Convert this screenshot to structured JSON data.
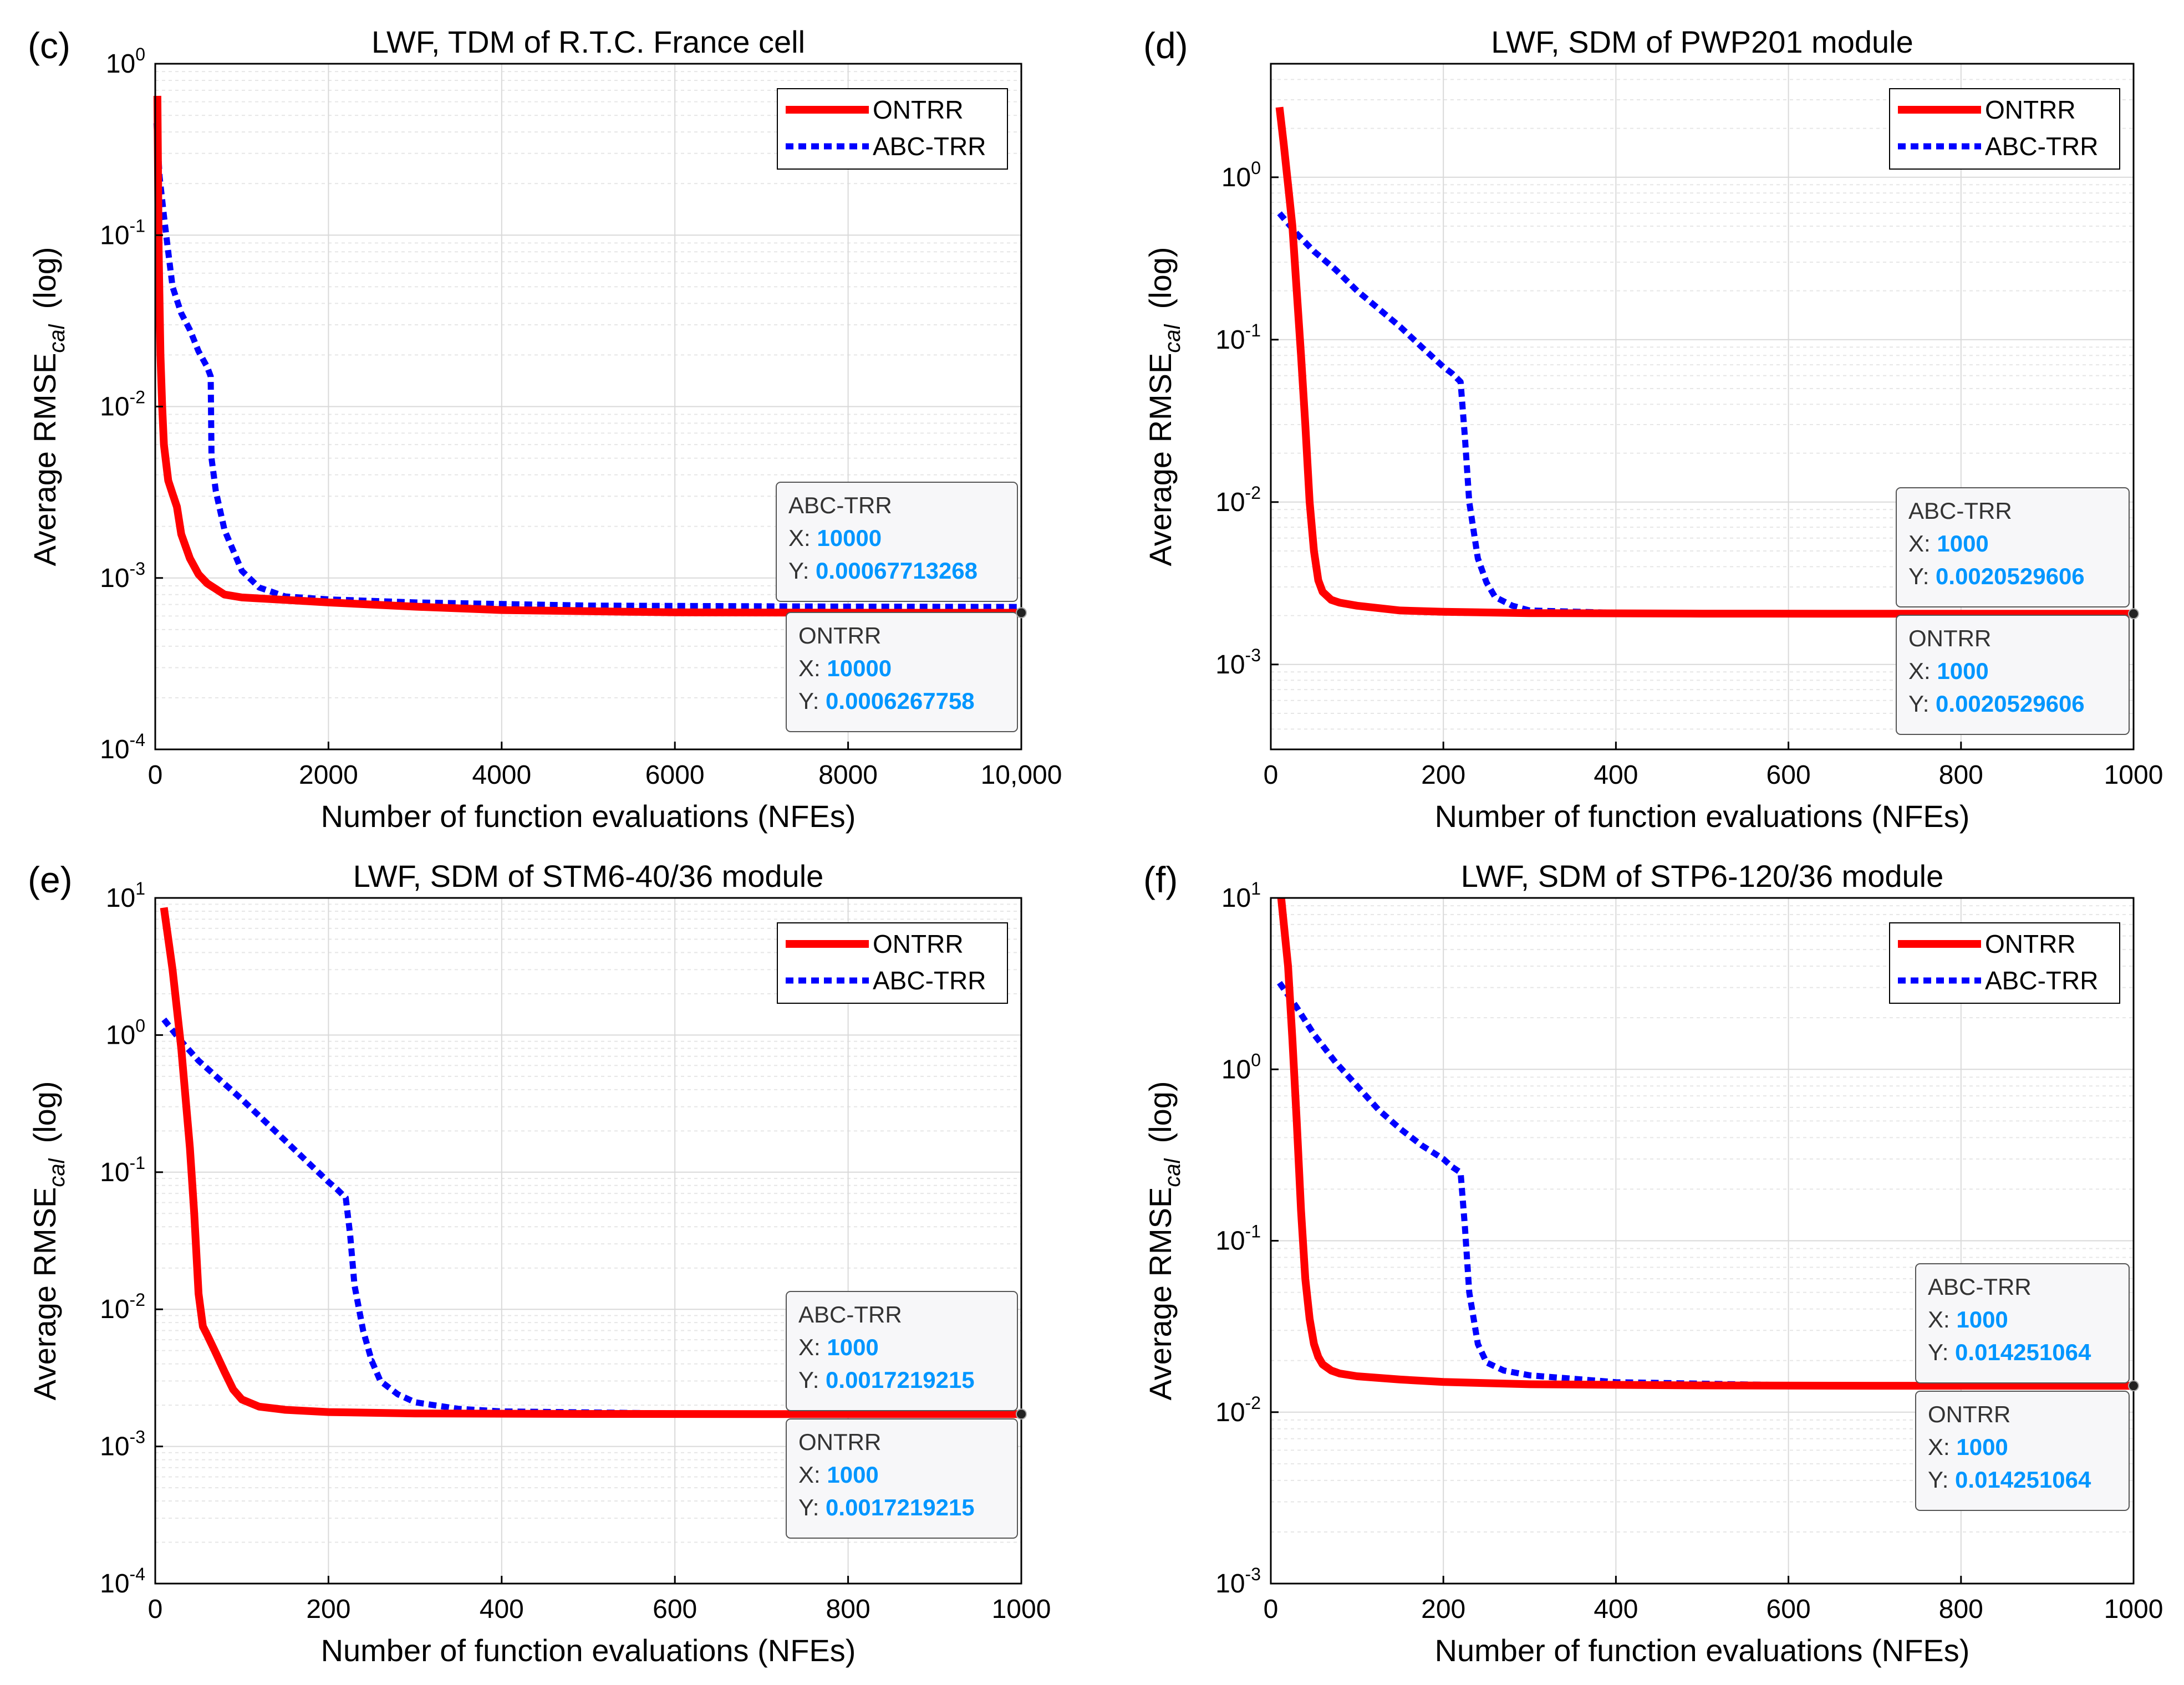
{
  "colors": {
    "ontrr": "#ff0000",
    "abctrr": "#0000ff",
    "datatip_value": "#0096ff",
    "grid_major": "#d9d9d9",
    "grid_minor": "#e6e6e6"
  },
  "chart_data": [
    {
      "type": "line",
      "panel_label": "(c)",
      "title": "LWF, TDM of R.T.C. France cell",
      "xlabel": "Number of function evaluations (NFEs)",
      "ylabel_main": "Average RMSE",
      "ylabel_sub": "cal",
      "ylabel_suffix": "(log)",
      "xlim": [
        0,
        10000
      ],
      "ylim": [
        0.0001,
        1
      ],
      "xticks": [
        0,
        2000,
        4000,
        6000,
        8000,
        10000
      ],
      "xtick_labels": [
        "0",
        "2000",
        "4000",
        "6000",
        "8000",
        "10,000"
      ],
      "yticks": [
        {
          "base": "10",
          "exp": "-4",
          "value": 0.0001
        },
        {
          "base": "10",
          "exp": "-3",
          "value": 0.001
        },
        {
          "base": "10",
          "exp": "-2",
          "value": 0.01
        },
        {
          "base": "10",
          "exp": "-1",
          "value": 0.1
        },
        {
          "base": "10",
          "exp": "0",
          "value": 1
        }
      ],
      "legend": [
        "ONTRR",
        "ABC-TRR"
      ],
      "series": [
        {
          "name": "ONTRR",
          "x": [
            25,
            40,
            60,
            80,
            100,
            150,
            200,
            250,
            300,
            400,
            500,
            600,
            800,
            1000,
            1500,
            2000,
            3000,
            4000,
            6000,
            8000,
            10000
          ],
          "y": [
            0.65,
            0.08,
            0.02,
            0.01,
            0.006,
            0.0037,
            0.0031,
            0.0026,
            0.0018,
            0.0013,
            0.00105,
            0.00093,
            0.0008,
            0.00077,
            0.000745,
            0.00072,
            0.00068,
            0.00065,
            0.00063,
            0.000627,
            0.0006267758
          ]
        },
        {
          "name": "ABC-TRR",
          "x": [
            15,
            50,
            100,
            150,
            200,
            300,
            400,
            500,
            600,
            640,
            650,
            700,
            800,
            1000,
            1200,
            1500,
            2000,
            3000,
            5000,
            8000,
            10000
          ],
          "y": [
            0.45,
            0.22,
            0.13,
            0.08,
            0.05,
            0.035,
            0.028,
            0.021,
            0.017,
            0.015,
            0.005,
            0.0032,
            0.0019,
            0.0011,
            0.00088,
            0.00078,
            0.00075,
            0.00072,
            0.00069,
            0.00068,
            0.00067713268
          ]
        }
      ],
      "datatips": [
        {
          "name": "ABC-TRR",
          "x_prefix": "X: ",
          "x_value": "10000",
          "y_prefix": "Y: ",
          "y_value": "0.00067713268"
        },
        {
          "name": "ONTRR",
          "x_prefix": "X: ",
          "x_value": "10000",
          "y_prefix": "Y: ",
          "y_value": "0.0006267758"
        }
      ]
    },
    {
      "type": "line",
      "panel_label": "(d)",
      "title": "LWF, SDM of PWP201 module",
      "xlabel": "Number of function evaluations (NFEs)",
      "ylabel_main": "Average RMSE",
      "ylabel_sub": "cal",
      "ylabel_suffix": "(log)",
      "xlim": [
        0,
        1000
      ],
      "ylim": [
        0.0003,
        5
      ],
      "xticks": [
        0,
        200,
        400,
        600,
        800,
        1000
      ],
      "xtick_labels": [
        "0",
        "200",
        "400",
        "600",
        "800",
        "1000"
      ],
      "yticks": [
        {
          "base": "10",
          "exp": "-3",
          "value": 0.001
        },
        {
          "base": "10",
          "exp": "-2",
          "value": 0.01
        },
        {
          "base": "10",
          "exp": "-1",
          "value": 0.1
        },
        {
          "base": "10",
          "exp": "0",
          "value": 1
        }
      ],
      "legend": [
        "ONTRR",
        "ABC-TRR"
      ],
      "series": [
        {
          "name": "ONTRR",
          "x": [
            10,
            15,
            20,
            25,
            30,
            35,
            40,
            45,
            50,
            55,
            60,
            70,
            80,
            100,
            150,
            200,
            300,
            500,
            700,
            1000
          ],
          "y": [
            2.7,
            1.6,
            0.9,
            0.5,
            0.2,
            0.08,
            0.03,
            0.01,
            0.005,
            0.0033,
            0.0028,
            0.0025,
            0.0024,
            0.0023,
            0.00215,
            0.00211,
            0.00207,
            0.002055,
            0.002053,
            0.0020529606
          ]
        },
        {
          "name": "ABC-TRR",
          "x": [
            10,
            30,
            50,
            75,
            100,
            125,
            150,
            175,
            200,
            210,
            220,
            225,
            230,
            240,
            250,
            260,
            280,
            300,
            400,
            600,
            800,
            1000
          ],
          "y": [
            0.6,
            0.45,
            0.35,
            0.27,
            0.2,
            0.155,
            0.12,
            0.09,
            0.068,
            0.062,
            0.055,
            0.025,
            0.01,
            0.0045,
            0.0032,
            0.0026,
            0.0023,
            0.00215,
            0.00208,
            0.002055,
            0.002053,
            0.0020529606
          ]
        }
      ],
      "datatips": [
        {
          "name": "ABC-TRR",
          "x_prefix": "X: ",
          "x_value": "1000",
          "y_prefix": "Y: ",
          "y_value": "0.0020529606"
        },
        {
          "name": "ONTRR",
          "x_prefix": "X: ",
          "x_value": "1000",
          "y_prefix": "Y: ",
          "y_value": "0.0020529606"
        }
      ]
    },
    {
      "type": "line",
      "panel_label": "(e)",
      "title": "LWF, SDM of STM6-40/36 module",
      "xlabel": "Number of function evaluations (NFEs)",
      "ylabel_main": "Average RMSE",
      "ylabel_sub": "cal",
      "ylabel_suffix": "(log)",
      "xlim": [
        0,
        1000
      ],
      "ylim": [
        0.0001,
        10
      ],
      "xticks": [
        0,
        200,
        400,
        600,
        800,
        1000
      ],
      "xtick_labels": [
        "0",
        "200",
        "400",
        "600",
        "800",
        "1000"
      ],
      "yticks": [
        {
          "base": "10",
          "exp": "-4",
          "value": 0.0001
        },
        {
          "base": "10",
          "exp": "-3",
          "value": 0.001
        },
        {
          "base": "10",
          "exp": "-2",
          "value": 0.01
        },
        {
          "base": "10",
          "exp": "-1",
          "value": 0.1
        },
        {
          "base": "10",
          "exp": "0",
          "value": 1
        },
        {
          "base": "10",
          "exp": "1",
          "value": 10
        }
      ],
      "legend": [
        "ONTRR",
        "ABC-TRR"
      ],
      "series": [
        {
          "name": "ONTRR",
          "x": [
            10,
            20,
            30,
            40,
            45,
            50,
            55,
            60,
            70,
            80,
            90,
            100,
            120,
            150,
            200,
            300,
            500,
            700,
            1000
          ],
          "y": [
            8.5,
            3.0,
            0.8,
            0.15,
            0.05,
            0.013,
            0.0075,
            0.0065,
            0.0048,
            0.0035,
            0.0026,
            0.0022,
            0.00195,
            0.00185,
            0.00178,
            0.00174,
            0.001725,
            0.001722,
            0.0017219215
          ]
        },
        {
          "name": "ABC-TRR",
          "x": [
            10,
            30,
            50,
            75,
            100,
            125,
            150,
            175,
            200,
            210,
            220,
            225,
            230,
            240,
            250,
            260,
            280,
            300,
            350,
            400,
            600,
            800,
            1000
          ],
          "y": [
            1.3,
            0.9,
            0.65,
            0.47,
            0.34,
            0.24,
            0.17,
            0.12,
            0.085,
            0.075,
            0.065,
            0.035,
            0.015,
            0.007,
            0.0042,
            0.003,
            0.0024,
            0.0021,
            0.00188,
            0.0018,
            0.00174,
            0.001723,
            0.0017219215
          ]
        }
      ],
      "datatips": [
        {
          "name": "ABC-TRR",
          "x_prefix": "X: ",
          "x_value": "1000",
          "y_prefix": "Y: ",
          "y_value": "0.0017219215"
        },
        {
          "name": "ONTRR",
          "x_prefix": "X: ",
          "x_value": "1000",
          "y_prefix": "Y: ",
          "y_value": "0.0017219215"
        }
      ]
    },
    {
      "type": "line",
      "panel_label": "(f)",
      "title": "LWF, SDM of STP6-120/36 module",
      "xlabel": "Number of function evaluations (NFEs)",
      "ylabel_main": "Average RMSE",
      "ylabel_sub": "cal",
      "ylabel_suffix": "(log)",
      "xlim": [
        0,
        1000
      ],
      "ylim": [
        0.001,
        10
      ],
      "xticks": [
        0,
        200,
        400,
        600,
        800,
        1000
      ],
      "xtick_labels": [
        "0",
        "200",
        "400",
        "600",
        "800",
        "1000"
      ],
      "yticks": [
        {
          "base": "10",
          "exp": "-3",
          "value": 0.001
        },
        {
          "base": "10",
          "exp": "-2",
          "value": 0.01
        },
        {
          "base": "10",
          "exp": "-1",
          "value": 0.1
        },
        {
          "base": "10",
          "exp": "0",
          "value": 1
        },
        {
          "base": "10",
          "exp": "1",
          "value": 10
        }
      ],
      "legend": [
        "ONTRR",
        "ABC-TRR"
      ],
      "series": [
        {
          "name": "ONTRR",
          "x": [
            12,
            20,
            25,
            30,
            35,
            40,
            45,
            50,
            55,
            60,
            70,
            80,
            100,
            150,
            200,
            300,
            500,
            700,
            1000
          ],
          "y": [
            10,
            4.0,
            1.5,
            0.5,
            0.15,
            0.06,
            0.035,
            0.025,
            0.021,
            0.019,
            0.0175,
            0.0168,
            0.0162,
            0.0155,
            0.015,
            0.01455,
            0.01432,
            0.014255,
            0.014251064
          ]
        },
        {
          "name": "ABC-TRR",
          "x": [
            10,
            30,
            50,
            75,
            100,
            125,
            150,
            175,
            200,
            210,
            220,
            225,
            230,
            240,
            250,
            270,
            300,
            400,
            600,
            800,
            1000
          ],
          "y": [
            3.2,
            2.3,
            1.6,
            1.1,
            0.8,
            0.58,
            0.45,
            0.36,
            0.3,
            0.27,
            0.25,
            0.12,
            0.05,
            0.025,
            0.0195,
            0.0175,
            0.0164,
            0.01495,
            0.01436,
            0.014258,
            0.014251064
          ]
        }
      ],
      "datatips": [
        {
          "name": "ABC-TRR",
          "x_prefix": "X: ",
          "x_value": "1000",
          "y_prefix": "Y: ",
          "y_value": "0.014251064"
        },
        {
          "name": "ONTRR",
          "x_prefix": "X: ",
          "x_value": "1000",
          "y_prefix": "Y: ",
          "y_value": "0.014251064"
        }
      ]
    }
  ]
}
